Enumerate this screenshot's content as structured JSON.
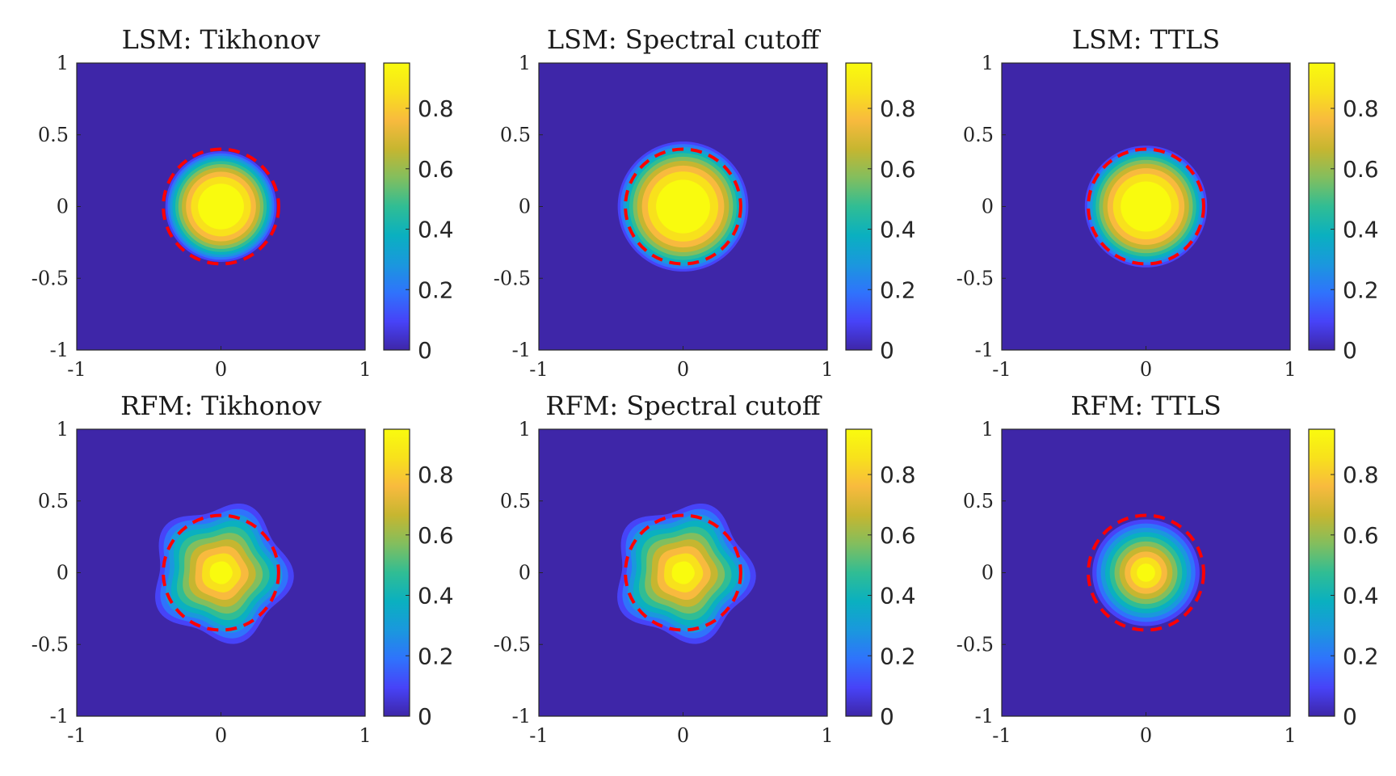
{
  "chart_data": [
    {
      "type": "heatmap",
      "title": "LSM: Tikhonov",
      "method": "LSM",
      "regularization": "Tikhonov",
      "xlim": [
        -1,
        1
      ],
      "ylim": [
        -1,
        1
      ],
      "xticks": [
        "-1",
        "0",
        "1"
      ],
      "yticks": [
        "1",
        "0.5",
        "0",
        "-0.5",
        "-1"
      ],
      "colorbar": {
        "range": [
          0,
          0.95
        ],
        "ticks": [
          "0.8",
          "0.6",
          "0.4",
          "0.2",
          "0"
        ]
      },
      "field": {
        "center": [
          0,
          0
        ],
        "support_radius": 0.4,
        "peak": 0.95,
        "sharpness": 2.6,
        "lobes": 0,
        "lobe_amplitude": 0
      },
      "true_boundary": {
        "shape": "circle",
        "radius": 0.4,
        "style": "dashed",
        "color": "#ff0000"
      }
    },
    {
      "type": "heatmap",
      "title": "LSM: Spectral cutoff",
      "method": "LSM",
      "regularization": "Spectral cutoff",
      "xlim": [
        -1,
        1
      ],
      "ylim": [
        -1,
        1
      ],
      "xticks": [
        "-1",
        "0",
        "1"
      ],
      "yticks": [
        "1",
        "0.5",
        "0",
        "-0.5",
        "-1"
      ],
      "colorbar": {
        "range": [
          0,
          0.95
        ],
        "ticks": [
          "0.8",
          "0.6",
          "0.4",
          "0.2",
          "0"
        ]
      },
      "field": {
        "center": [
          0,
          0
        ],
        "support_radius": 0.47,
        "peak": 0.95,
        "sharpness": 2.6,
        "lobes": 0,
        "lobe_amplitude": 0
      },
      "true_boundary": {
        "shape": "circle",
        "radius": 0.4,
        "style": "dashed",
        "color": "#ff0000"
      }
    },
    {
      "type": "heatmap",
      "title": "LSM: TTLS",
      "method": "LSM",
      "regularization": "TTLS",
      "xlim": [
        -1,
        1
      ],
      "ylim": [
        -1,
        1
      ],
      "xticks": [
        "-1",
        "0",
        "1"
      ],
      "yticks": [
        "1",
        "0.5",
        "0",
        "-0.5",
        "-1"
      ],
      "colorbar": {
        "range": [
          0,
          0.95
        ],
        "ticks": [
          "0.8",
          "0.6",
          "0.4",
          "0.2",
          "0"
        ]
      },
      "field": {
        "center": [
          0,
          0
        ],
        "support_radius": 0.44,
        "peak": 0.95,
        "sharpness": 2.6,
        "lobes": 0,
        "lobe_amplitude": 0
      },
      "true_boundary": {
        "shape": "circle",
        "radius": 0.4,
        "style": "dashed",
        "color": "#ff0000"
      }
    },
    {
      "type": "heatmap",
      "title": "RFM: Tikhonov",
      "method": "RFM",
      "regularization": "Tikhonov",
      "xlim": [
        -1,
        1
      ],
      "ylim": [
        -1,
        1
      ],
      "xticks": [
        "-1",
        "0",
        "1"
      ],
      "yticks": [
        "1",
        "0.5",
        "0",
        "-0.5",
        "-1"
      ],
      "colorbar": {
        "range": [
          0,
          0.95
        ],
        "ticks": [
          "0.8",
          "0.6",
          "0.4",
          "0.2",
          "0"
        ]
      },
      "field": {
        "center": [
          0,
          0
        ],
        "support_radius": 0.5,
        "peak": 0.95,
        "sharpness": 1.3,
        "lobes": 5,
        "lobe_amplitude": 0.09
      },
      "true_boundary": {
        "shape": "circle",
        "radius": 0.4,
        "style": "dashed",
        "color": "#ff0000"
      }
    },
    {
      "type": "heatmap",
      "title": "RFM: Spectral cutoff",
      "method": "RFM",
      "regularization": "Spectral cutoff",
      "xlim": [
        -1,
        1
      ],
      "ylim": [
        -1,
        1
      ],
      "xticks": [
        "-1",
        "0",
        "1"
      ],
      "yticks": [
        "1",
        "0.5",
        "0",
        "-0.5",
        "-1"
      ],
      "colorbar": {
        "range": [
          0,
          0.95
        ],
        "ticks": [
          "0.8",
          "0.6",
          "0.4",
          "0.2",
          "0"
        ]
      },
      "field": {
        "center": [
          0,
          0
        ],
        "support_radius": 0.5,
        "peak": 0.95,
        "sharpness": 1.3,
        "lobes": 5,
        "lobe_amplitude": 0.09
      },
      "true_boundary": {
        "shape": "circle",
        "radius": 0.4,
        "style": "dashed",
        "color": "#ff0000"
      }
    },
    {
      "type": "heatmap",
      "title": "RFM: TTLS",
      "method": "RFM",
      "regularization": "TTLS",
      "xlim": [
        -1,
        1
      ],
      "ylim": [
        -1,
        1
      ],
      "xticks": [
        "-1",
        "0",
        "1"
      ],
      "yticks": [
        "1",
        "0.5",
        "0",
        "-0.5",
        "-1"
      ],
      "colorbar": {
        "range": [
          0,
          0.95
        ],
        "ticks": [
          "0.8",
          "0.6",
          "0.4",
          "0.2",
          "0"
        ]
      },
      "field": {
        "center": [
          0,
          0
        ],
        "support_radius": 0.4,
        "peak": 0.95,
        "sharpness": 1.3,
        "lobes": 0,
        "lobe_amplitude": 0
      },
      "true_boundary": {
        "shape": "circle",
        "radius": 0.4,
        "style": "dashed",
        "color": "#ff0000"
      }
    }
  ],
  "colors": {
    "colormap": [
      "#3e26a8",
      "#4743f8",
      "#2f73fc",
      "#1a98dd",
      "#0ab0c0",
      "#30bd94",
      "#82be5e",
      "#c6b630",
      "#f8ba3e",
      "#f8e11c",
      "#f9fb0e"
    ],
    "background_level": "#3e26a8",
    "boundary": "#ff0000",
    "axis": "#262626"
  }
}
